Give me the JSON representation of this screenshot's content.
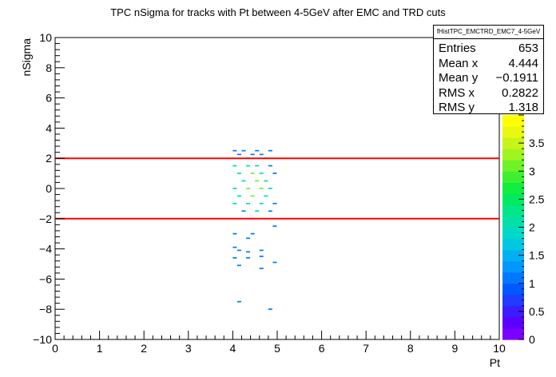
{
  "chart_data": {
    "type": "heatmap",
    "title": "TPC nSigma for tracks with Pt between 4-5GeV after EMC and TRD cuts",
    "xlabel": "Pt",
    "ylabel": "nSigma",
    "xlim": [
      0,
      10
    ],
    "ylim": [
      -10,
      10
    ],
    "x_ticks": [
      "0",
      "1",
      "2",
      "3",
      "4",
      "5",
      "6",
      "7",
      "8",
      "9",
      "10"
    ],
    "y_ticks": [
      "−10",
      "−8",
      "−6",
      "−4",
      "−2",
      "0",
      "2",
      "4",
      "6",
      "8",
      "10"
    ],
    "cut_lines": [
      2,
      -2
    ],
    "cut_line_color": "#ff0000",
    "colorbar": {
      "range": [
        0,
        4
      ],
      "ticks": [
        "0",
        "0.5",
        "1",
        "1.5",
        "2",
        "2.5",
        "3",
        "3.5"
      ],
      "colors": [
        "#7a00ff",
        "#5b00ff",
        "#3c1cff",
        "#1f3cff",
        "#0058ff",
        "#0078ff",
        "#0096ff",
        "#00b0f0",
        "#00c8e0",
        "#00d8c8",
        "#00e0a8",
        "#00e688",
        "#00ea60",
        "#10ee40",
        "#40f030",
        "#70f228",
        "#a0f420",
        "#c8f418",
        "#e8f810",
        "#ffff00"
      ]
    },
    "stats": {
      "name": "fHistTPC_EMCTRD_EMC7_4-5GeV",
      "rows": [
        {
          "label": "Entries",
          "value": "653"
        },
        {
          "label": "Mean x",
          "value": "4.444"
        },
        {
          "label": "Mean y",
          "value": "−0.1911"
        },
        {
          "label": "RMS x",
          "value": "0.2822"
        },
        {
          "label": "RMS y",
          "value": "1.318"
        }
      ]
    },
    "x_range_populated": [
      4.0,
      5.0
    ],
    "bins_note_counts": [
      {
        "x": 4.05,
        "y": 2.5,
        "z": 1
      },
      {
        "x": 4.25,
        "y": 2.5,
        "z": 1
      },
      {
        "x": 4.55,
        "y": 2.5,
        "z": 1
      },
      {
        "x": 4.85,
        "y": 2.5,
        "z": 1
      },
      {
        "x": 4.15,
        "y": 2.25,
        "z": 1
      },
      {
        "x": 4.45,
        "y": 2.25,
        "z": 1
      },
      {
        "x": 4.65,
        "y": 2.25,
        "z": 1
      },
      {
        "x": 4.35,
        "y": 2.0,
        "z": 1
      },
      {
        "x": 4.75,
        "y": 2.0,
        "z": 1
      },
      {
        "x": 4.05,
        "y": 1.5,
        "z": 2
      },
      {
        "x": 4.35,
        "y": 1.5,
        "z": 2
      },
      {
        "x": 4.55,
        "y": 1.5,
        "z": 2
      },
      {
        "x": 4.85,
        "y": 1.5,
        "z": 1
      },
      {
        "x": 4.15,
        "y": 1.0,
        "z": 2
      },
      {
        "x": 4.45,
        "y": 1.0,
        "z": 3
      },
      {
        "x": 4.65,
        "y": 1.0,
        "z": 2
      },
      {
        "x": 4.95,
        "y": 1.0,
        "z": 1
      },
      {
        "x": 4.25,
        "y": 0.5,
        "z": 2
      },
      {
        "x": 4.55,
        "y": 0.5,
        "z": 3
      },
      {
        "x": 4.75,
        "y": 0.5,
        "z": 2
      },
      {
        "x": 4.05,
        "y": 0.0,
        "z": 2
      },
      {
        "x": 4.35,
        "y": 0.0,
        "z": 3
      },
      {
        "x": 4.65,
        "y": 0.0,
        "z": 3
      },
      {
        "x": 4.85,
        "y": 0.0,
        "z": 2
      },
      {
        "x": 4.15,
        "y": -0.5,
        "z": 2
      },
      {
        "x": 4.45,
        "y": -0.5,
        "z": 3
      },
      {
        "x": 4.75,
        "y": -0.5,
        "z": 2
      },
      {
        "x": 4.05,
        "y": -1.0,
        "z": 2
      },
      {
        "x": 4.35,
        "y": -1.0,
        "z": 2
      },
      {
        "x": 4.65,
        "y": -1.0,
        "z": 2
      },
      {
        "x": 4.95,
        "y": -1.0,
        "z": 1
      },
      {
        "x": 4.25,
        "y": -1.5,
        "z": 1
      },
      {
        "x": 4.55,
        "y": -1.5,
        "z": 2
      },
      {
        "x": 4.85,
        "y": -1.5,
        "z": 1
      },
      {
        "x": 4.45,
        "y": -2.0,
        "z": 1
      },
      {
        "x": 4.95,
        "y": -2.5,
        "z": 1
      },
      {
        "x": 4.05,
        "y": -3.0,
        "z": 1
      },
      {
        "x": 4.45,
        "y": -3.0,
        "z": 1
      },
      {
        "x": 4.35,
        "y": -3.3,
        "z": 1
      },
      {
        "x": 4.05,
        "y": -3.9,
        "z": 1
      },
      {
        "x": 4.15,
        "y": -4.1,
        "z": 1
      },
      {
        "x": 4.35,
        "y": -4.2,
        "z": 1
      },
      {
        "x": 4.65,
        "y": -4.1,
        "z": 1
      },
      {
        "x": 4.65,
        "y": -4.5,
        "z": 1
      },
      {
        "x": 4.05,
        "y": -4.6,
        "z": 1
      },
      {
        "x": 4.35,
        "y": -4.6,
        "z": 1
      },
      {
        "x": 4.95,
        "y": -4.9,
        "z": 1
      },
      {
        "x": 4.15,
        "y": -5.1,
        "z": 1
      },
      {
        "x": 4.65,
        "y": -5.3,
        "z": 1
      },
      {
        "x": 4.15,
        "y": -7.5,
        "z": 1
      },
      {
        "x": 4.85,
        "y": -8.0,
        "z": 1
      }
    ]
  }
}
